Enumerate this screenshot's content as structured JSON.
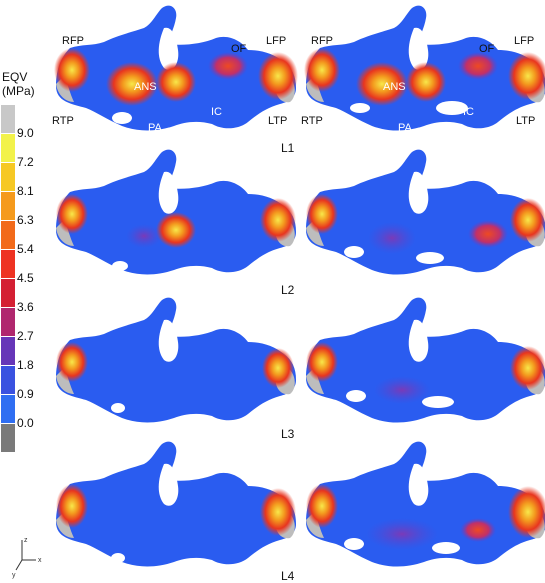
{
  "legend": {
    "title_line1": "EQV",
    "title_line2": "(MPa)",
    "ticks": [
      "9.0",
      "7.2",
      "8.1",
      "6.3",
      "5.4",
      "4.5",
      "3.6",
      "2.7",
      "1.8",
      "0.9",
      "0.0"
    ],
    "colors": [
      "#c8c8c8",
      "#f2f24a",
      "#f6c824",
      "#f59a1c",
      "#f26a1a",
      "#ee3322",
      "#d42033",
      "#b0276e",
      "#6636b8",
      "#3a52e0",
      "#2f6ef2",
      "#7a7a7a"
    ]
  },
  "region_labels": {
    "rfp_left": "RFP",
    "lfp_left": "LFP",
    "of_left": "OF",
    "ans_left": "ANS",
    "rtp_left": "RTP",
    "pa_left": "PA",
    "ic_left": "IC",
    "ltp_left": "LTP",
    "rfp_right": "RFP",
    "lfp_right": "LFP",
    "of_right": "OF",
    "ans_right": "ANS",
    "rtp_right": "RTP",
    "pa_right": "PA",
    "ic_right": "IC",
    "ltp_right": "LTP"
  },
  "rows": [
    "L1",
    "L2",
    "L3",
    "L4"
  ],
  "axes": {
    "x": "x",
    "y": "y",
    "z": "z"
  },
  "colors": {
    "bone_blue": "#2a5cf0",
    "hot_orange": "#f07a1c",
    "hot_red": "#e8351f",
    "grey": "#bdbdbd"
  }
}
